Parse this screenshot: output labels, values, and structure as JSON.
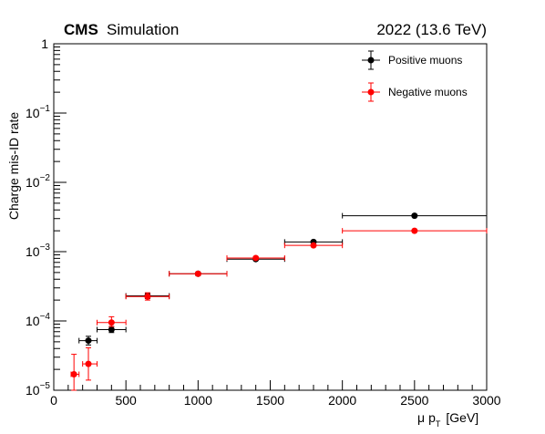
{
  "header": {
    "experiment": "CMS",
    "subtitle": "Simulation",
    "energy_label": "2022 (13.6 TeV)"
  },
  "axes": {
    "ylabel": "Charge mis-ID rate",
    "xlabel_mu": "μ",
    "xlabel_p": "p",
    "xlabel_sub": "T",
    "xlabel_unit": "[GeV]"
  },
  "chart_data": {
    "type": "scatter",
    "xlim": [
      0,
      3000
    ],
    "ylim": [
      1e-05,
      1
    ],
    "yscale": "log",
    "grid": false,
    "legend_position": "top-right",
    "x_ticks": [
      0,
      500,
      1000,
      1500,
      2000,
      2500,
      3000
    ],
    "y_ticks": [
      {
        "value": 1e-05,
        "base": "10",
        "exp": "−5"
      },
      {
        "value": 0.0001,
        "base": "10",
        "exp": "−4"
      },
      {
        "value": 0.001,
        "base": "10",
        "exp": "−3"
      },
      {
        "value": 0.01,
        "base": "10",
        "exp": "−2"
      },
      {
        "value": 0.1,
        "base": "10",
        "exp": "−1"
      },
      {
        "value": 1,
        "base": "1",
        "exp": ""
      }
    ],
    "series": [
      {
        "name": "Positive muons",
        "color": "#000000",
        "points": [
          {
            "x": 240,
            "xlo": 175,
            "xhi": 300,
            "y": 5.2e-05,
            "ylo": 4.5e-05,
            "yhi": 6e-05
          },
          {
            "x": 400,
            "xlo": 300,
            "xhi": 500,
            "y": 7.5e-05,
            "ylo": 6.8e-05,
            "yhi": 8.3e-05
          },
          {
            "x": 650,
            "xlo": 500,
            "xhi": 800,
            "y": 0.00023,
            "ylo": 0.00021,
            "yhi": 0.00025
          },
          {
            "x": 1000,
            "xlo": 800,
            "xhi": 1200,
            "y": 0.00048,
            "ylo": 0.00046,
            "yhi": 0.0005
          },
          {
            "x": 1400,
            "xlo": 1200,
            "xhi": 1600,
            "y": 0.00078,
            "ylo": 0.00075,
            "yhi": 0.00081
          },
          {
            "x": 1800,
            "xlo": 1600,
            "xhi": 2000,
            "y": 0.00138,
            "ylo": 0.00133,
            "yhi": 0.00143
          },
          {
            "x": 2500,
            "xlo": 2000,
            "xhi": 3000,
            "y": 0.0033,
            "ylo": 0.0032,
            "yhi": 0.0034
          }
        ]
      },
      {
        "name": "Negative muons",
        "color": "#ff0000",
        "points": [
          {
            "x": 140,
            "xlo": 120,
            "xhi": 175,
            "y": 1.7e-05,
            "ylo": 1e-05,
            "yhi": 3.3e-05
          },
          {
            "x": 240,
            "xlo": 200,
            "xhi": 300,
            "y": 2.4e-05,
            "ylo": 1.4e-05,
            "yhi": 4.1e-05
          },
          {
            "x": 400,
            "xlo": 300,
            "xhi": 500,
            "y": 9.5e-05,
            "ylo": 8.3e-05,
            "yhi": 0.000115
          },
          {
            "x": 650,
            "xlo": 500,
            "xhi": 800,
            "y": 0.000225,
            "ylo": 0.0002,
            "yhi": 0.000255
          },
          {
            "x": 1000,
            "xlo": 800,
            "xhi": 1200,
            "y": 0.00048,
            "ylo": 0.00045,
            "yhi": 0.0005
          },
          {
            "x": 1400,
            "xlo": 1200,
            "xhi": 1600,
            "y": 0.00081,
            "ylo": 0.00077,
            "yhi": 0.00085
          },
          {
            "x": 1800,
            "xlo": 1600,
            "xhi": 2000,
            "y": 0.00123,
            "ylo": 0.00118,
            "yhi": 0.00128
          },
          {
            "x": 2500,
            "xlo": 2000,
            "xhi": 3000,
            "y": 0.002,
            "ylo": 0.00195,
            "yhi": 0.00205
          }
        ]
      }
    ]
  }
}
